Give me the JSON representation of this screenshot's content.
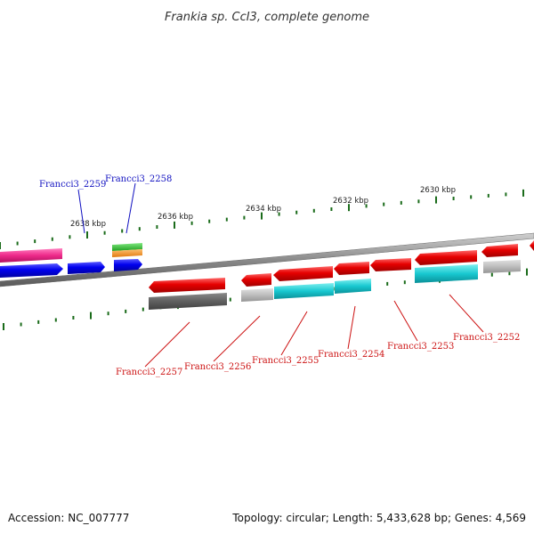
{
  "title": "Frankia sp. CcI3, complete genome",
  "footer": {
    "accession": "Accession: NC_007777",
    "summary": "Topology: circular; Length: 5,433,628 bp; Genes: 4,569"
  },
  "colors": {
    "backbone": "#8a8a8a",
    "tick": "#1a6b1a",
    "forward_label": "#1010c0",
    "reverse_label": "#cc1111"
  },
  "kbp_labels": [
    "2638 kbp",
    "2636 kbp",
    "2634 kbp",
    "2632 kbp",
    "2630 kbp"
  ],
  "gene_labels": {
    "forward": [
      "Francci3_2259",
      "Francci3_2258"
    ],
    "reverse": [
      "Francci3_2257",
      "Francci3_2256",
      "Francci3_2255",
      "Francci3_2254",
      "Francci3_2253",
      "Francci3_2252"
    ]
  }
}
